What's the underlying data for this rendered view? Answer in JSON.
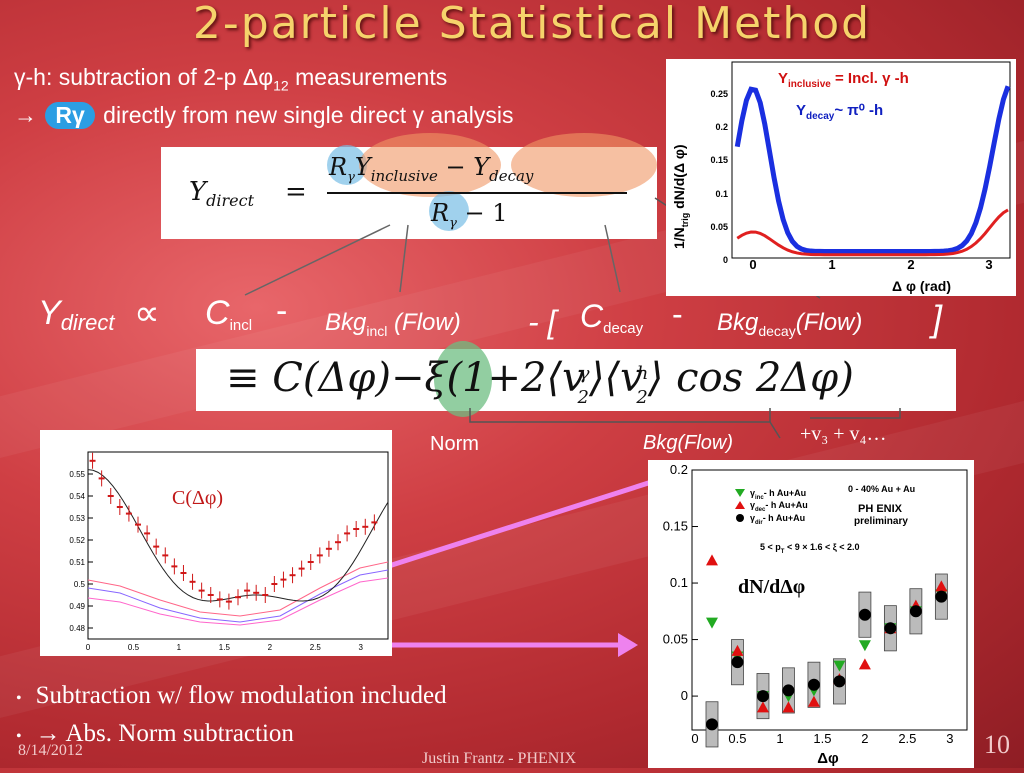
{
  "title": "2-particle Statistical  Method",
  "line1": {
    "pre": "γ-h: subtraction of 2-p ",
    "delta": "Δφ",
    "sub": "12",
    "post": " measurements"
  },
  "line2": {
    "arrow": "→ ",
    "rg": "Rγ",
    "post": " directly from new single direct γ analysis"
  },
  "eq1": {
    "lhs": "Y",
    "lhs_sub": "direct",
    "eq": "=",
    "rg": "R",
    "rg_sub": "γ",
    "yinc": "Y",
    "yinc_sub": "inclusive",
    "minus": "−",
    "ydec": "Y",
    "ydec_sub": "decay",
    "den_rg": "R",
    "den_rg_sub": "γ",
    "den_rest": "− 1"
  },
  "formula": {
    "y": "Y",
    "y_sub": "direct",
    "prop": "∝",
    "cincl": "C",
    "cincl_sub": "incl",
    "minus1": "-",
    "bkgincl": "Bkg",
    "bkgincl_sub": "incl",
    "bkgincl_post": " (Flow)",
    "minus2": "- [",
    "cdecay": "C",
    "cdecay_sub": "decay",
    "minus3": "-",
    "bkgdecay": "Bkg",
    "bkgdecay_sub": "decay",
    "bkgdecay_post": "(Flow)",
    "close": "]"
  },
  "eq2": {
    "text": "≡ C(Δφ)−ξ(1+2⟨v",
    "g": "γ",
    "two1": "2",
    "mid": "⟩⟨v",
    "h": "h",
    "two2": "2",
    "end": "⟩ cos 2Δφ)"
  },
  "labels": {
    "norm": "Norm",
    "bkgflow": "Bkg(Flow)",
    "v34": "+v₃ + v₄…"
  },
  "top_plot": {
    "legend_inc": "Y",
    "legend_inc_sub": "inclusive",
    "legend_inc_post": " = Incl. γ -h",
    "legend_dec": "Y",
    "legend_dec_sub": "decay",
    "legend_dec_post": "~ π⁰ -h",
    "ylabel": "1/N",
    "ylabel_sub": "trig",
    "ylabel_post": " dN/d(Δ φ)",
    "xlabel": "Δ φ (rad)",
    "yticks": [
      "0.25",
      "0.2",
      "0.15",
      "0.1",
      "0.05",
      "0"
    ],
    "xticks": [
      "0",
      "1",
      "2",
      "3"
    ]
  },
  "left_plot": {
    "label": "C(Δφ)",
    "yticks": [
      "0.55",
      "0.54",
      "0.53",
      "0.52",
      "0.51",
      "0.5",
      "0.49",
      "0.48"
    ],
    "xticks": [
      "0",
      "0.5",
      "1",
      "1.5",
      "2",
      "2.5",
      "3"
    ]
  },
  "right_plot": {
    "yticks": [
      "0.2",
      "0.15",
      "0.1",
      "0.05",
      "0"
    ],
    "xticks": [
      "0",
      "0.5",
      "1",
      "1.5",
      "2",
      "2.5",
      "3"
    ],
    "xlabel": "Δφ",
    "label": "dN/dΔφ",
    "leg_inc": "- h Au+Au",
    "leg_inc_sym": "γ",
    "leg_inc_sub": "inc",
    "leg_dec": "- h Au+Au",
    "leg_dec_sym": "γ",
    "leg_dec_sub": "dec",
    "leg_dir": "- h Au+Au",
    "leg_dir_sym": "γ",
    "leg_dir_sub": "dir",
    "cent": "0 - 40% Au + Au",
    "logo": "PH ENIX",
    "prelim": "preliminary",
    "cuts": "5 < p",
    "cuts_sub": "T",
    "cuts_post": " < 9 × 1.6 < ξ < 2.0"
  },
  "chart_data": [
    {
      "type": "scatter",
      "title": "",
      "xlabel": "",
      "ylabel": "",
      "xlim": [
        0,
        3.3
      ],
      "ylim": [
        0.475,
        0.56
      ],
      "series": [
        {
          "name": "",
          "x": [
            0.05,
            0.15,
            0.25,
            0.35,
            0.45,
            0.55,
            0.65,
            0.75,
            0.85,
            0.95,
            1.05,
            1.15,
            1.25,
            1.35,
            1.45,
            1.55,
            1.65,
            1.75,
            1.85,
            1.95,
            2.05,
            2.15,
            2.25,
            2.35,
            2.45,
            2.55,
            2.65,
            2.75,
            2.85,
            2.95,
            3.05,
            3.15
          ],
          "values": [
            0.556,
            0.548,
            0.54,
            0.535,
            0.532,
            0.527,
            0.523,
            0.517,
            0.513,
            0.508,
            0.505,
            0.501,
            0.497,
            0.495,
            0.493,
            0.492,
            0.494,
            0.497,
            0.496,
            0.495,
            0.5,
            0.502,
            0.504,
            0.507,
            0.51,
            0.513,
            0.516,
            0.519,
            0.523,
            0.525,
            0.526,
            0.528
          ]
        }
      ]
    },
    {
      "type": "scatter",
      "title": "",
      "xlabel": "Δφ",
      "ylabel": "",
      "xlim": [
        0,
        3.14
      ],
      "ylim": [
        -0.03,
        0.2
      ],
      "series": [
        {
          "name": "γinc - h Au+Au",
          "x": [
            0.2,
            0.5,
            0.8,
            1.1,
            1.4,
            1.7,
            2.0,
            2.3,
            2.6,
            2.9
          ],
          "values": [
            0.065,
            0.035,
            0.0,
            0.0,
            0.005,
            0.027,
            0.045,
            0.06,
            0.075,
            0.09
          ]
        },
        {
          "name": "γdec - h Au+Au",
          "x": [
            0.2,
            0.5,
            0.8,
            1.1,
            1.4,
            1.7,
            2.0,
            2.3,
            2.6,
            2.9
          ],
          "values": [
            0.12,
            0.04,
            -0.01,
            -0.01,
            -0.005,
            0.015,
            0.028,
            0.06,
            0.08,
            0.097
          ]
        },
        {
          "name": "γdir - h Au+Au",
          "x": [
            0.2,
            0.5,
            0.8,
            1.1,
            1.4,
            1.7,
            2.0,
            2.3,
            2.6,
            2.9
          ],
          "values": [
            -0.025,
            0.03,
            0.0,
            0.005,
            0.01,
            0.013,
            0.072,
            0.06,
            0.075,
            0.088
          ]
        }
      ]
    }
  ],
  "bullets": [
    "Subtraction w/ flow modulation included",
    "→  Abs. Norm subtraction"
  ],
  "footer": {
    "date": "8/14/2012",
    "author": "Justin Frantz - PHENIX",
    "page": "10"
  }
}
